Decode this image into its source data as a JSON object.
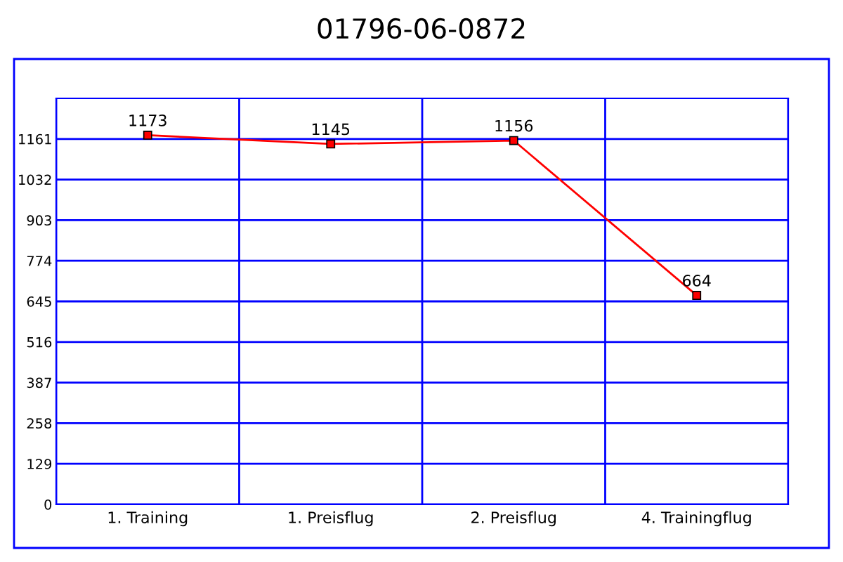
{
  "chart_data": {
    "type": "line",
    "title": "01796-06-0872",
    "categories": [
      "1. Training",
      "1. Preisflug",
      "2. Preisflug",
      "4. Trainingflug"
    ],
    "series": [
      {
        "color": "#ff0000",
        "values": [
          1173,
          1145,
          1156,
          664
        ]
      }
    ],
    "ylim": [
      0,
      1290
    ],
    "yticks": [
      0,
      129,
      258,
      387,
      516,
      645,
      774,
      903,
      1032,
      1161
    ],
    "grid": true,
    "marker": "square",
    "line_style": "solid",
    "data_labels": true
  }
}
